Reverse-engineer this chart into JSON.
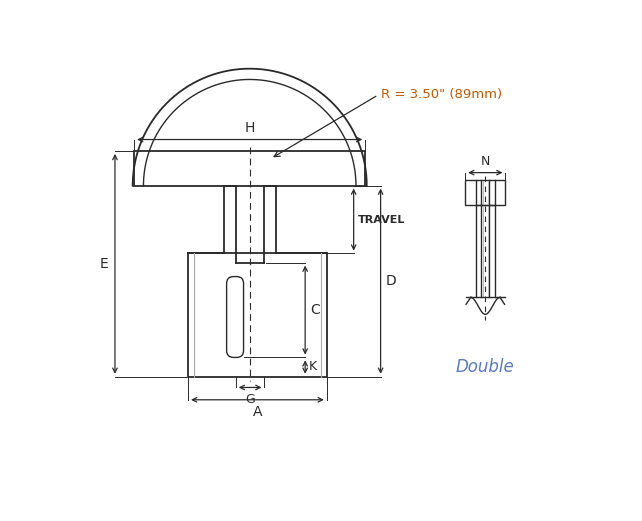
{
  "bg_color": "#ffffff",
  "line_color": "#2a2a2a",
  "radius_text_color": "#c05a00",
  "double_text_color": "#5a7abf",
  "radius_label": "R = 3.50\" (89mm)",
  "label_E": "E",
  "label_H": "H",
  "label_C": "C",
  "label_D": "D",
  "label_K": "K",
  "label_G": "G",
  "label_A": "A",
  "label_N": "N",
  "label_TRAVEL": "TRAVEL",
  "label_Double": "Double",
  "figsize": [
    6.42,
    5.21
  ],
  "dpi": 100
}
